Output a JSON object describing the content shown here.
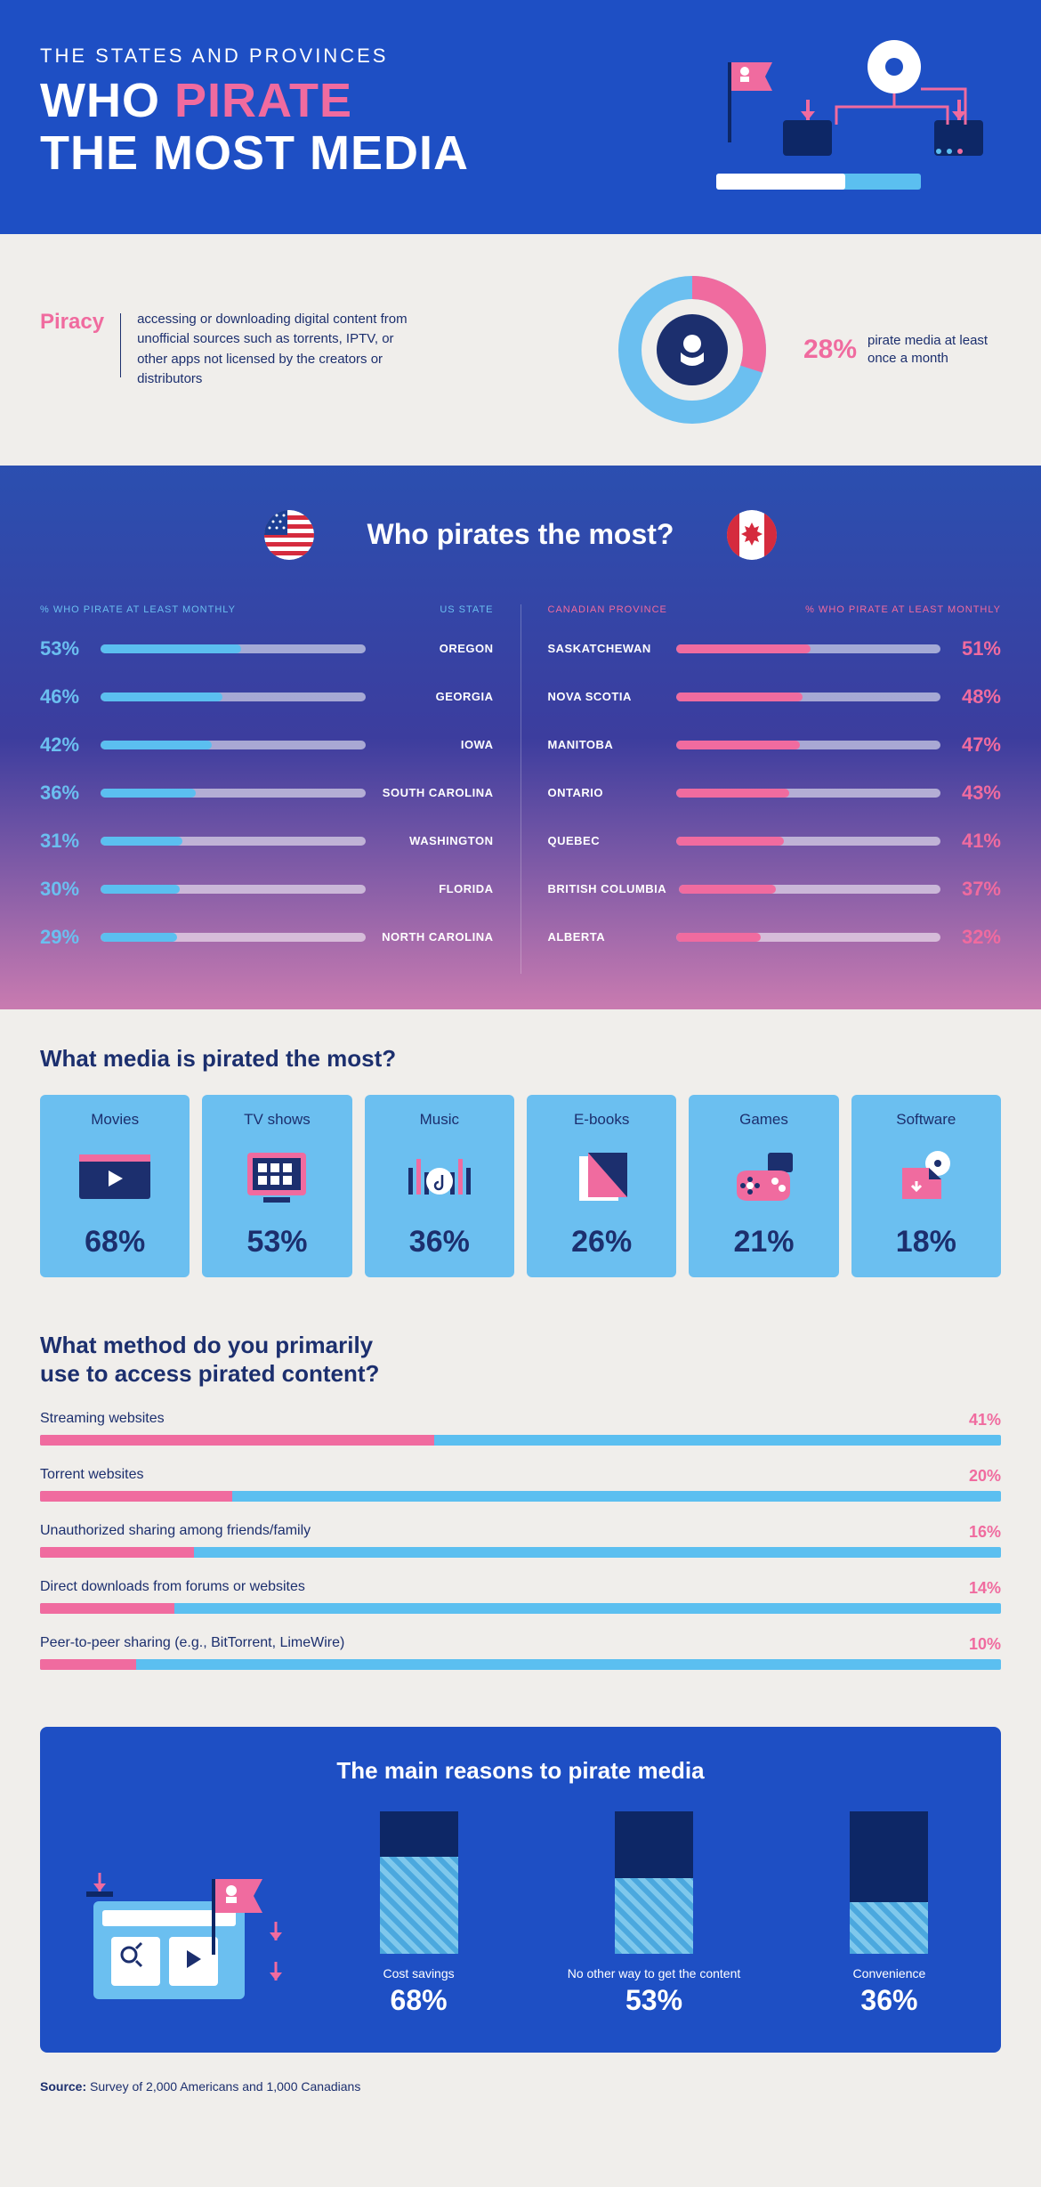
{
  "colors": {
    "headerBg": "#1e4fc4",
    "bodyBg": "#f0eeeb",
    "navy": "#1c2f6e",
    "pink": "#f06b9f",
    "skyBlue": "#6bbff0",
    "barBlue": "#5bbff0",
    "darkBarBg": "#0d2766"
  },
  "header": {
    "subtitle": "THE STATES AND PROVINCES",
    "title_pre": "WHO ",
    "title_pink": "PIRATE",
    "title_post": "THE MOST MEDIA"
  },
  "definition": {
    "label": "Piracy",
    "text": "accessing or downloading digital content from unofficial sources such as torrents, IPTV, or other apps not licensed by the creators or distributors",
    "donut": {
      "pct": 28,
      "pinkColor": "#f06b9f",
      "blueColor": "#6bbff0",
      "centerNavy": "#1c2f6e"
    },
    "statPct": "28%",
    "statText": "pirate media at least once a month"
  },
  "compare": {
    "title": "Who pirates the most?",
    "usHeader": {
      "pct": "% WHO PIRATE AT LEAST MONTHLY",
      "name": "US STATE"
    },
    "caHeader": {
      "pct": "% WHO PIRATE AT LEAST MONTHLY",
      "name": "CANADIAN PROVINCE"
    },
    "us": [
      {
        "pct": 53,
        "label": "OREGON"
      },
      {
        "pct": 46,
        "label": "GEORGIA"
      },
      {
        "pct": 42,
        "label": "IOWA"
      },
      {
        "pct": 36,
        "label": "SOUTH CAROLINA"
      },
      {
        "pct": 31,
        "label": "WASHINGTON"
      },
      {
        "pct": 30,
        "label": "FLORIDA"
      },
      {
        "pct": 29,
        "label": "NORTH CAROLINA"
      }
    ],
    "ca": [
      {
        "pct": 51,
        "label": "SASKATCHEWAN"
      },
      {
        "pct": 48,
        "label": "NOVA SCOTIA"
      },
      {
        "pct": 47,
        "label": "MANITOBA"
      },
      {
        "pct": 43,
        "label": "ONTARIO"
      },
      {
        "pct": 41,
        "label": "QUEBEC"
      },
      {
        "pct": 37,
        "label": "BRITISH COLUMBIA"
      },
      {
        "pct": 32,
        "label": "ALBERTA"
      }
    ]
  },
  "media": {
    "title": "What media is pirated the most?",
    "cards": [
      {
        "name": "Movies",
        "pct": "68%"
      },
      {
        "name": "TV shows",
        "pct": "53%"
      },
      {
        "name": "Music",
        "pct": "36%"
      },
      {
        "name": "E-books",
        "pct": "26%"
      },
      {
        "name": "Games",
        "pct": "21%"
      },
      {
        "name": "Software",
        "pct": "18%"
      }
    ]
  },
  "methods": {
    "title": "What method do you primarily use to access pirated content?",
    "rows": [
      {
        "label": "Streaming websites",
        "pct": 41
      },
      {
        "label": "Torrent websites",
        "pct": 20
      },
      {
        "label": "Unauthorized sharing among friends/family",
        "pct": 16
      },
      {
        "label": "Direct downloads from forums or websites",
        "pct": 14
      },
      {
        "label": "Peer-to-peer sharing (e.g., BitTorrent, LimeWire)",
        "pct": 10
      }
    ]
  },
  "reasons": {
    "title": "The main reasons to pirate media",
    "bars": [
      {
        "label": "Cost savings",
        "pct": 68
      },
      {
        "label": "No other way to get the content",
        "pct": 53
      },
      {
        "label": "Convenience",
        "pct": 36
      }
    ]
  },
  "source": {
    "label": "Source:",
    "text": "Survey of 2,000 Americans and 1,000 Canadians"
  }
}
